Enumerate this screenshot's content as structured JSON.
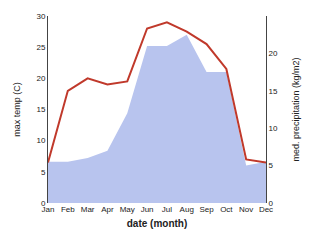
{
  "chart_data": {
    "type": "line",
    "xlabel": "date (month)",
    "ylabel": "max temp (C)",
    "y2label": "med. precipitation (kg/m2)",
    "categories": [
      "Jan",
      "Feb",
      "Mar",
      "Apr",
      "May",
      "Jun",
      "Jul",
      "Aug",
      "Sep",
      "Oct",
      "Nov",
      "Dec"
    ],
    "series": [
      {
        "type": "area",
        "axis": "y2",
        "color": "#b8c4ee",
        "values": [
          5.5,
          5.5,
          6.0,
          7.0,
          12.0,
          21.0,
          21.0,
          22.5,
          17.5,
          17.5,
          5.0,
          5.5
        ]
      },
      {
        "type": "line",
        "color": "#c0392b",
        "values": [
          6.5,
          18.0,
          20.0,
          19.0,
          19.5,
          28.0,
          29.0,
          27.5,
          25.5,
          21.5,
          7.0,
          6.5
        ]
      }
    ],
    "ylim": [
      0,
      30
    ],
    "yticks": [
      0,
      5,
      10,
      15,
      20,
      25,
      30
    ],
    "y2lim": [
      0,
      25
    ],
    "y2ticks": [
      0,
      5,
      10,
      15,
      20
    ],
    "grid": false
  }
}
